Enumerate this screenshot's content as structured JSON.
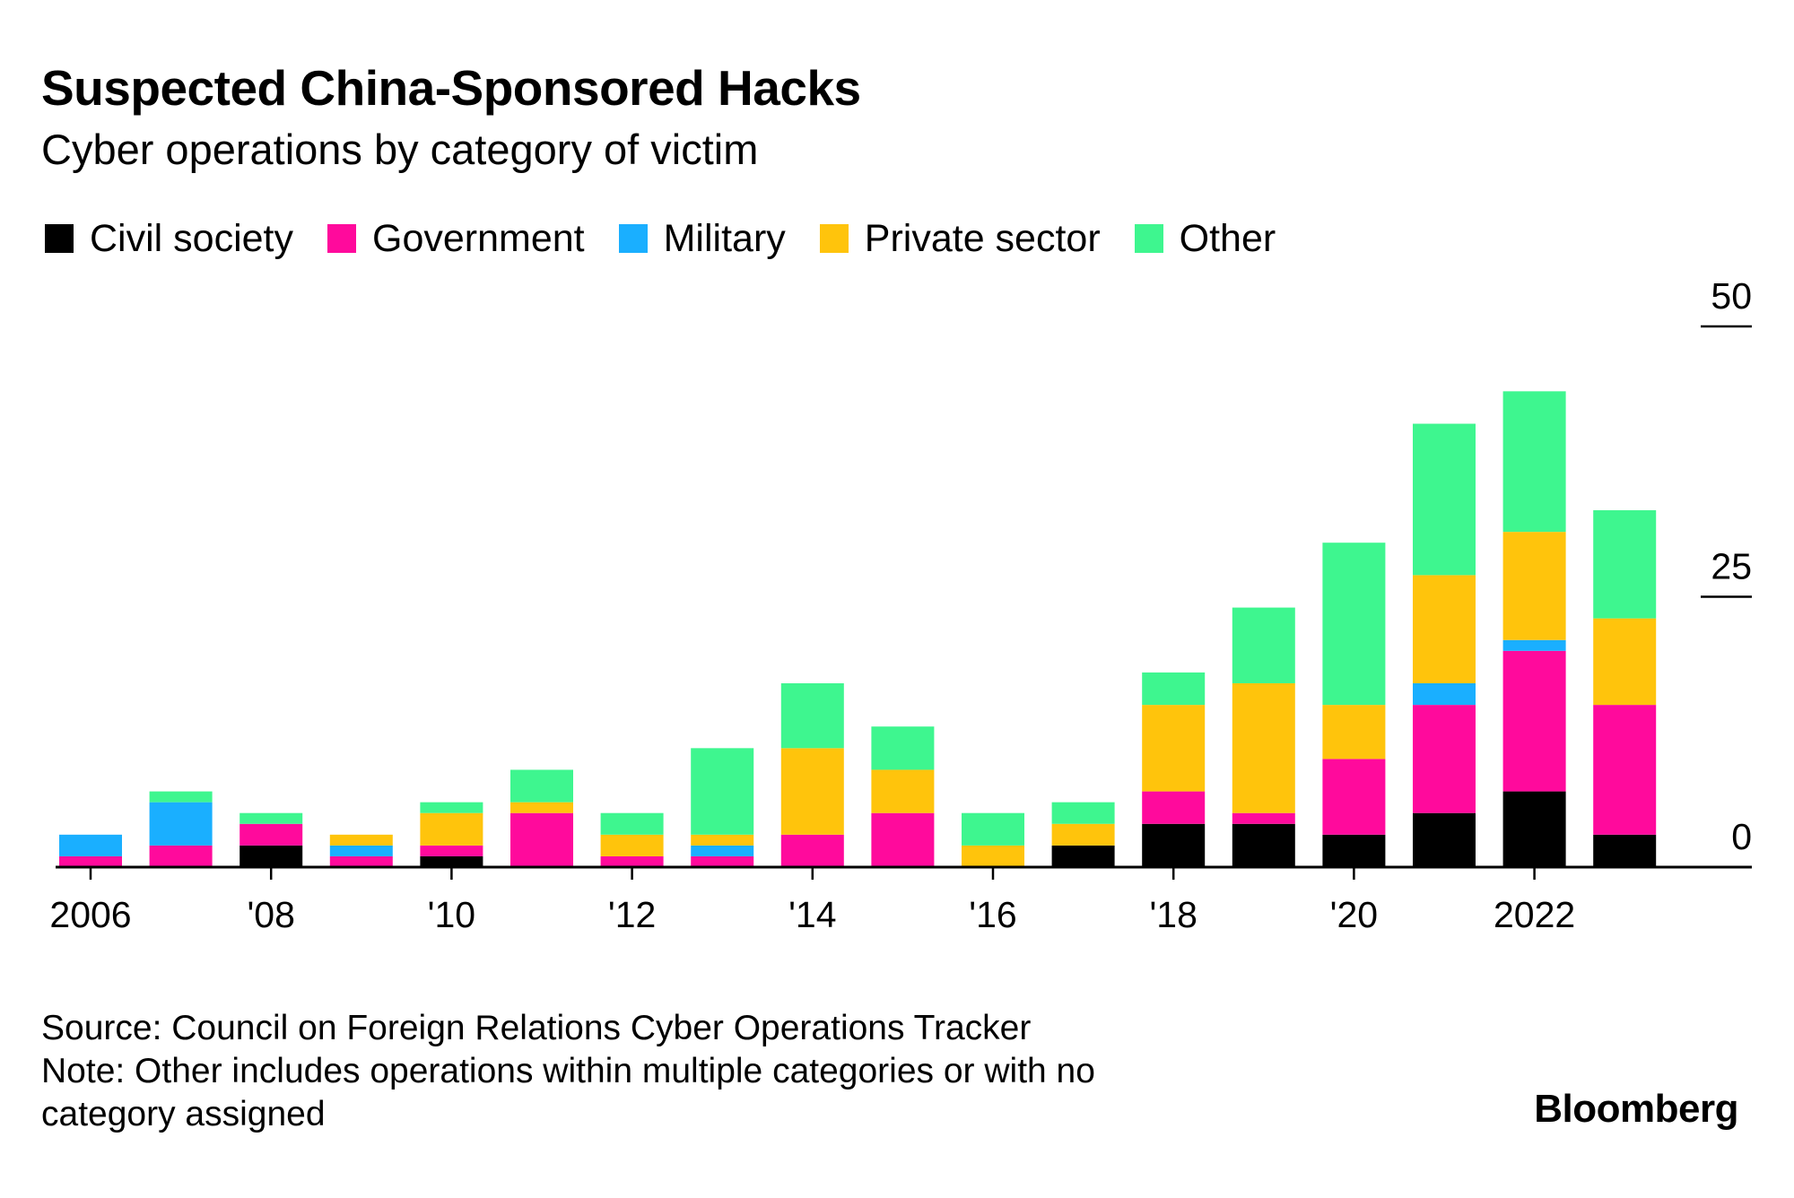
{
  "header": {
    "title": "Suspected China-Sponsored Hacks",
    "subtitle": "Cyber operations by category of victim"
  },
  "footer": {
    "source": "Source: Council on Foreign Relations Cyber Operations Tracker",
    "note_line1": "Note: Other includes operations within multiple categories or with no",
    "note_line2": "category assigned",
    "brand": "Bloomberg"
  },
  "legend": [
    {
      "label": "Civil society",
      "color": "#000000"
    },
    {
      "label": "Government",
      "color": "#ff0a9c"
    },
    {
      "label": "Military",
      "color": "#1aafff"
    },
    {
      "label": "Private sector",
      "color": "#ffc40c"
    },
    {
      "label": "Other",
      "color": "#3ef68f"
    }
  ],
  "chart_data": {
    "type": "bar",
    "stacked": true,
    "categories": [
      "2006",
      "2007",
      "2008",
      "2009",
      "2010",
      "2011",
      "2012",
      "2013",
      "2014",
      "2015",
      "2016",
      "2017",
      "2018",
      "2019",
      "2020",
      "2021",
      "2022",
      "2023"
    ],
    "tick_labels": [
      {
        "year": "2006",
        "label": "2006"
      },
      {
        "year": "2008",
        "label": "'08"
      },
      {
        "year": "2010",
        "label": "'10"
      },
      {
        "year": "2012",
        "label": "'12"
      },
      {
        "year": "2014",
        "label": "'14"
      },
      {
        "year": "2016",
        "label": "'16"
      },
      {
        "year": "2018",
        "label": "'18"
      },
      {
        "year": "2020",
        "label": "'20"
      },
      {
        "year": "2022",
        "label": "2022"
      }
    ],
    "y_ticks": [
      0,
      25,
      50
    ],
    "ylim": [
      0,
      50
    ],
    "y_axis_position": "right",
    "grid": false,
    "legend_position": "top-left",
    "series": [
      {
        "name": "Civil society",
        "color": "#000000",
        "values": [
          0,
          0,
          2,
          0,
          1,
          0,
          0,
          0,
          0,
          0,
          0,
          2,
          4,
          4,
          3,
          5,
          7,
          3
        ]
      },
      {
        "name": "Government",
        "color": "#ff0a9c",
        "values": [
          1,
          2,
          2,
          1,
          1,
          5,
          1,
          1,
          3,
          5,
          0,
          0,
          3,
          1,
          7,
          10,
          13,
          12
        ]
      },
      {
        "name": "Military",
        "color": "#1aafff",
        "values": [
          2,
          4,
          0,
          1,
          0,
          0,
          0,
          1,
          0,
          0,
          0,
          0,
          0,
          0,
          0,
          2,
          1,
          0
        ]
      },
      {
        "name": "Private sector",
        "color": "#ffc40c",
        "values": [
          0,
          0,
          0,
          1,
          3,
          1,
          2,
          1,
          8,
          4,
          2,
          2,
          8,
          12,
          5,
          10,
          10,
          8
        ]
      },
      {
        "name": "Other",
        "color": "#3ef68f",
        "values": [
          0,
          1,
          1,
          0,
          1,
          3,
          2,
          8,
          6,
          4,
          3,
          2,
          3,
          7,
          15,
          14,
          13,
          10
        ]
      }
    ]
  }
}
